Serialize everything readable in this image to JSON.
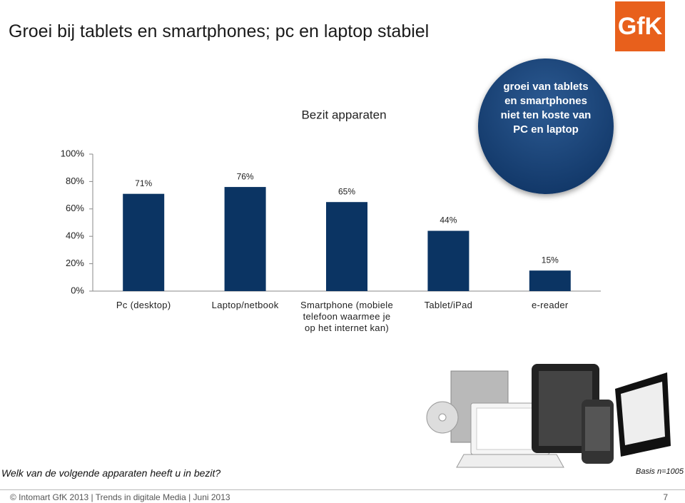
{
  "header": {
    "title": "Groei bij tablets en smartphones; pc en laptop stabiel",
    "logo": "GfK"
  },
  "chart_data": {
    "type": "bar",
    "title": "Bezit apparaten",
    "categories": [
      "Pc (desktop)",
      "Laptop/netbook",
      "Smartphone (mobiele telefoon waarmee je op het internet kan)",
      "Tablet/iPad",
      "e-reader"
    ],
    "values": [
      71,
      76,
      65,
      44,
      15
    ],
    "value_labels": [
      "71%",
      "76%",
      "65%",
      "44%",
      "15%"
    ],
    "color": "#0b3463",
    "ylim": [
      0,
      100
    ],
    "yticks": [
      {
        "value": 0,
        "label": "0%"
      },
      {
        "value": 20,
        "label": "20%"
      },
      {
        "value": 40,
        "label": "40%"
      },
      {
        "value": 60,
        "label": "60%"
      },
      {
        "value": 80,
        "label": "80%"
      },
      {
        "value": 100,
        "label": "100%"
      }
    ],
    "grid": false
  },
  "callout": "groei van tablets en smartphones niet ten koste van PC en laptop",
  "question": "Welk van de volgende apparaten heeft u in bezit?",
  "basis": "Basis n=1005",
  "footer": {
    "text": "© Intomart GfK 2013 | Trends in digitale Media | Juni 2013",
    "page": "7"
  }
}
